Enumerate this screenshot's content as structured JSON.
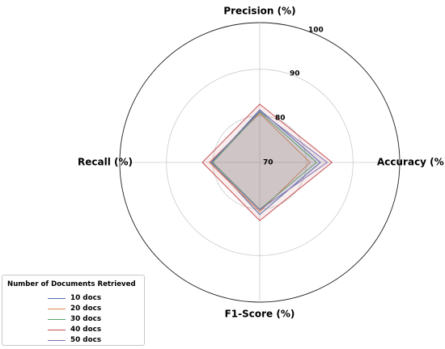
{
  "chart_data": {
    "type": "radar",
    "axes": [
      "Accuracy (%)",
      "Precision (%)",
      "Recall (%)",
      "F1-Score (%)"
    ],
    "rlim": [
      70,
      100
    ],
    "rticks": [
      "70",
      "80",
      "90",
      "100"
    ],
    "grid": true,
    "legend_title": "Number of Documents Retrieved",
    "legend_position": "bottom-left",
    "series": [
      {
        "name": "10 docs",
        "color": "#4c72b0",
        "values": [
          83,
          81.3,
          80.3,
          81.2
        ]
      },
      {
        "name": "20 docs",
        "color": "#dd8452",
        "values": [
          80.8,
          80.5,
          80.8,
          80.6
        ]
      },
      {
        "name": "30 docs",
        "color": "#55a868",
        "values": [
          82.2,
          80.8,
          80.1,
          80.1
        ]
      },
      {
        "name": "40 docs",
        "color": "#c44e52",
        "values": [
          85.5,
          82.5,
          82.3,
          82.5
        ]
      },
      {
        "name": "50 docs",
        "color": "#8172b3",
        "values": [
          84.5,
          81,
          80.5,
          80.2
        ]
      }
    ]
  }
}
